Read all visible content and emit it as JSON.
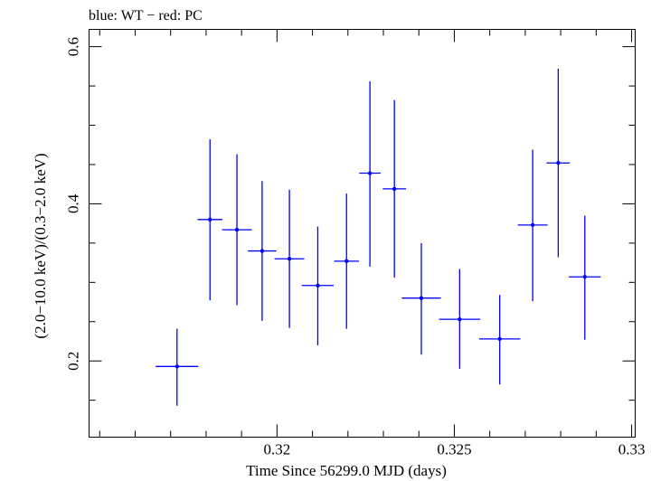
{
  "header": {
    "legend_text": "blue: WT − red: PC"
  },
  "colors": {
    "series": "#0000ff",
    "axes": "#000000",
    "background": "#ffffff"
  },
  "chart_data": {
    "type": "scatter",
    "xlabel": "Time Since 56299.0 MJD (days)",
    "ylabel": "(2.0−10.0 keV)/(0.3−2.0 keV)",
    "xlim": [
      0.3147,
      0.3301
    ],
    "ylim": [
      0.103,
      0.622
    ],
    "x_ticks": [
      {
        "value": 0.32,
        "label": "0.32"
      },
      {
        "value": 0.325,
        "label": "0.325"
      },
      {
        "value": 0.33,
        "label": "0.33"
      }
    ],
    "y_ticks": [
      {
        "value": 0.2,
        "label": "0.2"
      },
      {
        "value": 0.4,
        "label": "0.4"
      },
      {
        "value": 0.6,
        "label": "0.6"
      }
    ],
    "grid": false,
    "series": [
      {
        "color": "#0000ff",
        "points": [
          {
            "x": 0.31718,
            "y": 0.193,
            "xerr": 0.0006,
            "ylo": 0.143,
            "yhi": 0.241
          },
          {
            "x": 0.31811,
            "y": 0.38,
            "xerr": 0.00035,
            "ylo": 0.277,
            "yhi": 0.482
          },
          {
            "x": 0.31887,
            "y": 0.367,
            "xerr": 0.00042,
            "ylo": 0.271,
            "yhi": 0.463
          },
          {
            "x": 0.31958,
            "y": 0.34,
            "xerr": 0.0004,
            "ylo": 0.251,
            "yhi": 0.429
          },
          {
            "x": 0.32035,
            "y": 0.33,
            "xerr": 0.00042,
            "ylo": 0.242,
            "yhi": 0.418
          },
          {
            "x": 0.32115,
            "y": 0.296,
            "xerr": 0.00045,
            "ylo": 0.22,
            "yhi": 0.371
          },
          {
            "x": 0.32196,
            "y": 0.327,
            "xerr": 0.00035,
            "ylo": 0.241,
            "yhi": 0.413
          },
          {
            "x": 0.32262,
            "y": 0.439,
            "xerr": 0.0003,
            "ylo": 0.32,
            "yhi": 0.556
          },
          {
            "x": 0.32331,
            "y": 0.419,
            "xerr": 0.00033,
            "ylo": 0.306,
            "yhi": 0.532
          },
          {
            "x": 0.32407,
            "y": 0.28,
            "xerr": 0.00055,
            "ylo": 0.208,
            "yhi": 0.35
          },
          {
            "x": 0.32515,
            "y": 0.253,
            "xerr": 0.00058,
            "ylo": 0.19,
            "yhi": 0.317
          },
          {
            "x": 0.32628,
            "y": 0.228,
            "xerr": 0.00058,
            "ylo": 0.17,
            "yhi": 0.284
          },
          {
            "x": 0.32721,
            "y": 0.373,
            "xerr": 0.00042,
            "ylo": 0.276,
            "yhi": 0.469
          },
          {
            "x": 0.32793,
            "y": 0.452,
            "xerr": 0.00033,
            "ylo": 0.332,
            "yhi": 0.572
          },
          {
            "x": 0.32868,
            "y": 0.307,
            "xerr": 0.00045,
            "ylo": 0.227,
            "yhi": 0.385
          }
        ]
      }
    ]
  }
}
